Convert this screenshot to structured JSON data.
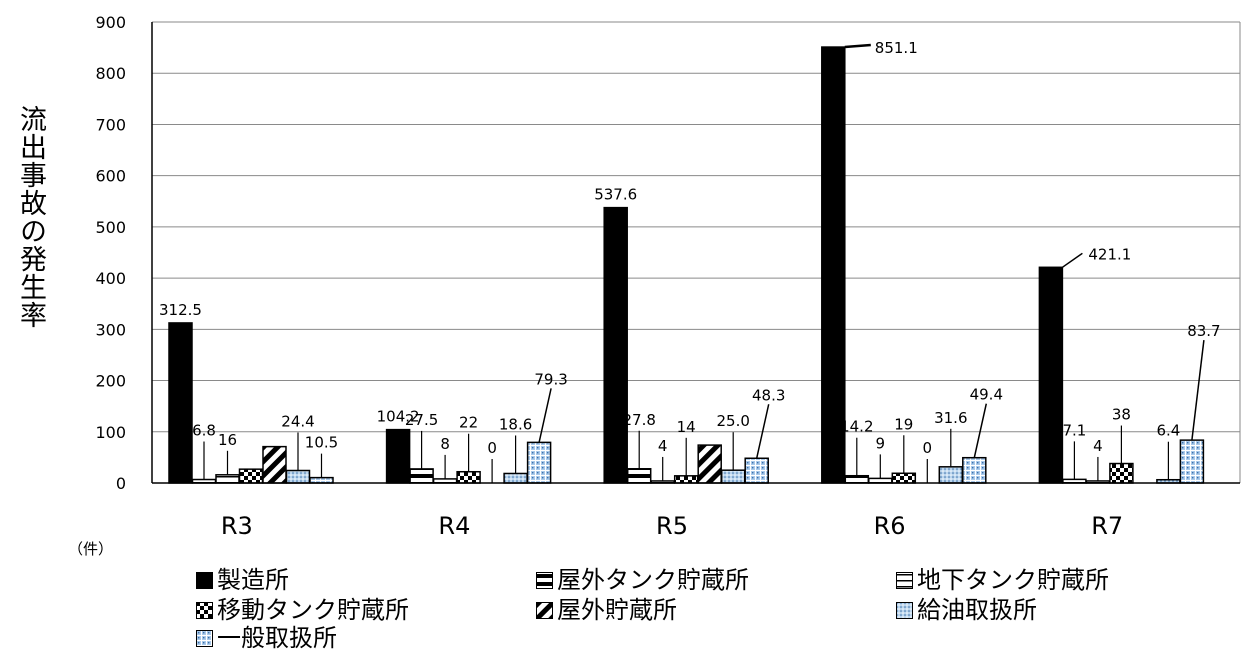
{
  "chart_data": {
    "type": "bar",
    "ylabel": "流出事故の発生率",
    "unit_label": "（件）",
    "ylim": [
      0,
      900
    ],
    "yticks": [
      0,
      100,
      200,
      300,
      400,
      500,
      600,
      700,
      800,
      900
    ],
    "categories": [
      "R3",
      "R4",
      "R5",
      "R6",
      "R7"
    ],
    "grid": true,
    "legend_position": "bottom",
    "series": [
      {
        "name": "製造所",
        "values": [
          312.5,
          104.2,
          537.6,
          851.1,
          421.1
        ],
        "labels": [
          "312.5",
          "104.2",
          "537.6",
          "851.1",
          "421.1"
        ],
        "pattern": "solid"
      },
      {
        "name": "屋外タンク貯蔵所",
        "values": [
          6.8,
          27.5,
          27.8,
          14.2,
          7.1
        ],
        "labels": [
          "6.8",
          "27.5",
          "27.8",
          "14.2",
          "7.1"
        ],
        "pattern": "hbar"
      },
      {
        "name": "地下タンク貯蔵所",
        "values": [
          16,
          8,
          4,
          9,
          4
        ],
        "labels": [
          "16",
          "8",
          "4",
          "9",
          "4"
        ],
        "pattern": "hline"
      },
      {
        "name": "移動タンク貯蔵所",
        "values": [
          27,
          22,
          14,
          19,
          38
        ],
        "labels": [
          "",
          "22",
          "14",
          "19",
          "38"
        ],
        "pattern": "checker"
      },
      {
        "name": "屋外貯蔵所",
        "values": [
          71,
          0,
          74,
          0,
          0
        ],
        "labels": [
          "",
          "0",
          "",
          "0",
          ""
        ],
        "pattern": "diag"
      },
      {
        "name": "給油取扱所",
        "values": [
          24.4,
          18.6,
          25.0,
          31.6,
          6.4
        ],
        "labels": [
          "24.4",
          "18.6",
          "25.0",
          "31.6",
          "6.4"
        ],
        "pattern": "dots"
      },
      {
        "name": "一般取扱所",
        "values": [
          10.5,
          79.3,
          48.3,
          49.4,
          83.7
        ],
        "labels": [
          "10.5",
          "79.3",
          "48.3",
          "49.4",
          "83.7"
        ],
        "pattern": "grid"
      }
    ]
  }
}
